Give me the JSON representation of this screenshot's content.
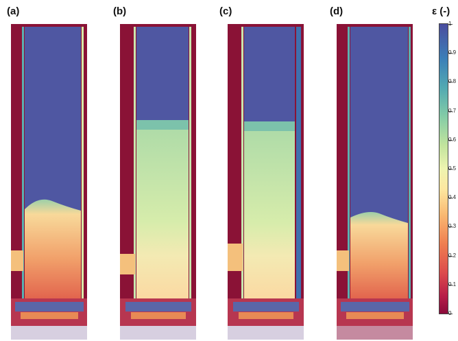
{
  "panels": [
    {
      "label": "(a)"
    },
    {
      "label": "(b)"
    },
    {
      "label": "(c)"
    },
    {
      "label": "(d)"
    }
  ],
  "colorbar": {
    "title": "ε (-)",
    "ticks": [
      "1",
      "0.9",
      "0.8",
      "0.7",
      "0.6",
      "0.5",
      "0.4",
      "0.3",
      "0.2",
      "0.1",
      "0"
    ],
    "colors": {
      "high": "#4a4c9e",
      "mid": "#eef4b0",
      "low": "#8a0b3a"
    }
  }
}
